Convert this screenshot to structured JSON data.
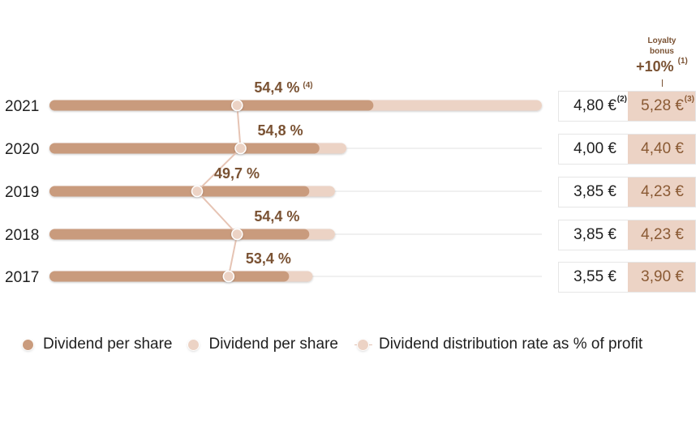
{
  "chart_data": {
    "type": "bar",
    "categories": [
      "2021",
      "2020",
      "2019",
      "2018",
      "2017"
    ],
    "series": [
      {
        "name": "Dividend per share",
        "values": [
          4.8,
          4.0,
          3.85,
          3.85,
          3.55
        ],
        "color": "#c99b7d"
      },
      {
        "name": "Dividend per share",
        "values": [
          5.28,
          4.4,
          4.23,
          4.23,
          3.9
        ],
        "color": "#ecd3c5"
      },
      {
        "name": "Dividend distribution rate as % of profit",
        "values": [
          54.4,
          54.8,
          49.7,
          54.4,
          53.4
        ],
        "color": "#e6c4b4"
      }
    ],
    "rate_labels": [
      "54,4 %",
      "54,8 %",
      "49,7 %",
      "54,4 %",
      "53,4 %"
    ],
    "rate_label_notes": [
      "(4)",
      "",
      "",
      "",
      ""
    ],
    "full_track_rows": [
      "2021"
    ],
    "rate_color": "#7a5233"
  },
  "loyalty_header": {
    "label_line1": "Loyalty",
    "label_line2": "bonus",
    "percent": "+10%",
    "note": "(1)"
  },
  "value_boxes": [
    {
      "year": "2021",
      "base": "4,80 €",
      "base_note": "(2)",
      "bonus": "5,28 €",
      "bonus_note": "(3)"
    },
    {
      "year": "2020",
      "base": "4,00 €",
      "base_note": "",
      "bonus": "4,40 €",
      "bonus_note": ""
    },
    {
      "year": "2019",
      "base": "3,85 €",
      "base_note": "",
      "bonus": "4,23 €",
      "bonus_note": ""
    },
    {
      "year": "2018",
      "base": "3,85 €",
      "base_note": "",
      "bonus": "4,23 €",
      "bonus_note": ""
    },
    {
      "year": "2017",
      "base": "3,55 €",
      "base_note": "",
      "bonus": "3,90 €",
      "bonus_note": ""
    }
  ],
  "legend": {
    "item1": "Dividend per share",
    "item2": "Dividend per share",
    "item3": "Dividend distribution rate as % of profit"
  }
}
